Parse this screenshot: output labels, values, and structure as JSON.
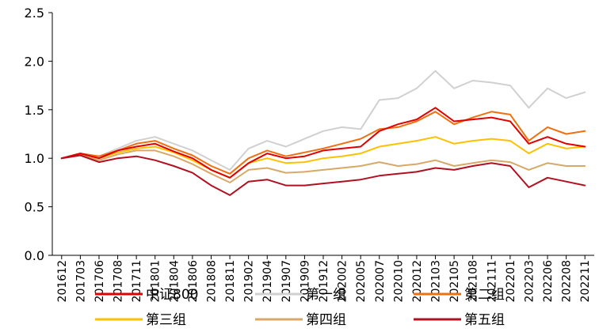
{
  "chart_data": {
    "type": "line",
    "ylim": [
      0,
      2.5
    ],
    "yticks": [
      "0.0",
      "0.5",
      "1.0",
      "1.5",
      "2.0",
      "2.5"
    ],
    "x": [
      "201612",
      "201703",
      "201706",
      "201708",
      "201711",
      "201801",
      "201804",
      "201806",
      "201808",
      "201811",
      "201902",
      "201904",
      "201907",
      "201909",
      "201912",
      "202002",
      "202005",
      "202007",
      "202010",
      "202012",
      "202103",
      "202105",
      "202108",
      "202111",
      "202201",
      "202203",
      "202206",
      "202208",
      "202211"
    ],
    "grid": false,
    "legend_position": "bottom",
    "series": [
      {
        "name": "中证800",
        "color": "#e00000",
        "values": [
          1.0,
          1.05,
          1.0,
          1.08,
          1.12,
          1.15,
          1.07,
          1.0,
          0.88,
          0.8,
          0.95,
          1.05,
          1.0,
          1.02,
          1.08,
          1.1,
          1.12,
          1.28,
          1.35,
          1.4,
          1.52,
          1.38,
          1.4,
          1.42,
          1.38,
          1.15,
          1.22,
          1.15,
          1.12
        ]
      },
      {
        "name": "第一组",
        "color": "#d0d0d0",
        "values": [
          1.0,
          1.05,
          1.02,
          1.1,
          1.18,
          1.22,
          1.15,
          1.08,
          0.98,
          0.88,
          1.1,
          1.18,
          1.12,
          1.2,
          1.28,
          1.32,
          1.3,
          1.6,
          1.62,
          1.72,
          1.9,
          1.72,
          1.8,
          1.78,
          1.75,
          1.52,
          1.72,
          1.62,
          1.68
        ]
      },
      {
        "name": "第二组",
        "color": "#f07010",
        "values": [
          1.0,
          1.05,
          1.02,
          1.08,
          1.15,
          1.18,
          1.1,
          1.03,
          0.92,
          0.84,
          1.0,
          1.08,
          1.02,
          1.06,
          1.1,
          1.15,
          1.2,
          1.3,
          1.32,
          1.38,
          1.48,
          1.35,
          1.42,
          1.48,
          1.45,
          1.18,
          1.32,
          1.25,
          1.28
        ]
      },
      {
        "name": "第三组",
        "color": "#ffc000",
        "values": [
          1.0,
          1.04,
          1.0,
          1.06,
          1.1,
          1.12,
          1.06,
          0.98,
          0.88,
          0.8,
          0.95,
          1.0,
          0.95,
          0.96,
          1.0,
          1.02,
          1.05,
          1.12,
          1.15,
          1.18,
          1.22,
          1.15,
          1.18,
          1.2,
          1.18,
          1.05,
          1.15,
          1.1,
          1.12
        ]
      },
      {
        "name": "第四组",
        "color": "#d8a868",
        "values": [
          1.0,
          1.04,
          0.98,
          1.04,
          1.08,
          1.08,
          1.02,
          0.94,
          0.84,
          0.75,
          0.88,
          0.9,
          0.85,
          0.86,
          0.88,
          0.9,
          0.92,
          0.96,
          0.92,
          0.94,
          0.98,
          0.92,
          0.95,
          0.98,
          0.96,
          0.88,
          0.95,
          0.92,
          0.92
        ]
      },
      {
        "name": "第五组",
        "color": "#b01020",
        "values": [
          1.0,
          1.03,
          0.96,
          1.0,
          1.02,
          0.98,
          0.92,
          0.85,
          0.72,
          0.62,
          0.76,
          0.78,
          0.72,
          0.72,
          0.74,
          0.76,
          0.78,
          0.82,
          0.84,
          0.86,
          0.9,
          0.88,
          0.92,
          0.95,
          0.92,
          0.7,
          0.8,
          0.76,
          0.72
        ]
      }
    ]
  }
}
